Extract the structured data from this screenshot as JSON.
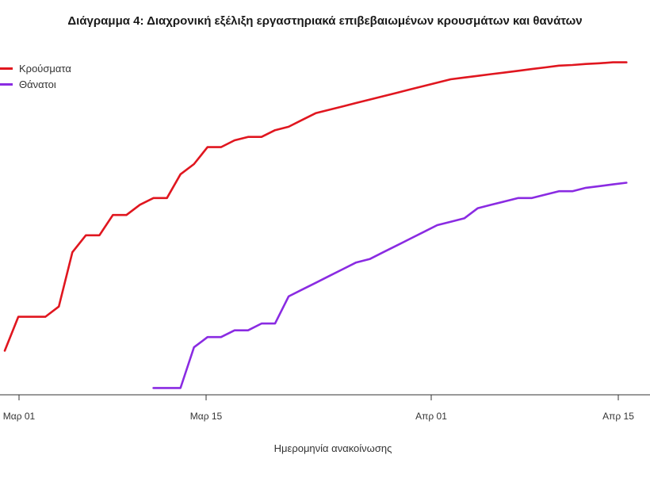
{
  "chart_data": {
    "type": "line",
    "title": "Διάγραμμα 4: Διαχρονική εξέλιξη εργαστηριακά επιβεβαιωμένων κρουσμάτων και θανάτων",
    "xlabel": "Ημερομηνία ανακοίνωσης",
    "ylabel": "",
    "x_ticks": [
      "Μαρ 01",
      "Μαρ 15",
      "Απρ 01",
      "Απρ 15"
    ],
    "legend_position": "top-left",
    "grid": false,
    "series": [
      {
        "name": "Κρούσματα",
        "color": "#e0161f",
        "points": [
          [
            0.0,
            0.13
          ],
          [
            1.0,
            0.23
          ],
          [
            2.0,
            0.23
          ],
          [
            3.0,
            0.23
          ],
          [
            4.0,
            0.26
          ],
          [
            5.0,
            0.42
          ],
          [
            6.0,
            0.47
          ],
          [
            7.0,
            0.47
          ],
          [
            8.0,
            0.53
          ],
          [
            9.0,
            0.53
          ],
          [
            10.0,
            0.56
          ],
          [
            11.0,
            0.58
          ],
          [
            12.0,
            0.58
          ],
          [
            13.0,
            0.65
          ],
          [
            14.0,
            0.68
          ],
          [
            15.0,
            0.73
          ],
          [
            16.0,
            0.73
          ],
          [
            17.0,
            0.75
          ],
          [
            18.0,
            0.76
          ],
          [
            19.0,
            0.76
          ],
          [
            20.0,
            0.78
          ],
          [
            21.0,
            0.79
          ],
          [
            22.0,
            0.81
          ],
          [
            23.0,
            0.83
          ],
          [
            24.0,
            0.84
          ],
          [
            25.0,
            0.85
          ],
          [
            26.0,
            0.86
          ],
          [
            27.0,
            0.87
          ],
          [
            28.0,
            0.88
          ],
          [
            29.0,
            0.89
          ],
          [
            30.0,
            0.9
          ],
          [
            31.0,
            0.91
          ],
          [
            32.0,
            0.92
          ],
          [
            33.0,
            0.93
          ],
          [
            34.0,
            0.935
          ],
          [
            35.0,
            0.94
          ],
          [
            36.0,
            0.945
          ],
          [
            37.0,
            0.95
          ],
          [
            38.0,
            0.955
          ],
          [
            39.0,
            0.96
          ],
          [
            40.0,
            0.965
          ],
          [
            41.0,
            0.97
          ],
          [
            42.0,
            0.972
          ],
          [
            43.0,
            0.975
          ],
          [
            44.0,
            0.977
          ],
          [
            45.0,
            0.98
          ],
          [
            46.0,
            0.98
          ]
        ]
      },
      {
        "name": "Θάνατοι",
        "color": "#8a2be2",
        "points": [
          [
            11.0,
            0.02
          ],
          [
            12.0,
            0.02
          ],
          [
            13.0,
            0.02
          ],
          [
            14.0,
            0.14
          ],
          [
            15.0,
            0.17
          ],
          [
            16.0,
            0.17
          ],
          [
            17.0,
            0.19
          ],
          [
            18.0,
            0.19
          ],
          [
            19.0,
            0.21
          ],
          [
            20.0,
            0.21
          ],
          [
            21.0,
            0.29
          ],
          [
            22.0,
            0.31
          ],
          [
            23.0,
            0.33
          ],
          [
            24.0,
            0.35
          ],
          [
            25.0,
            0.37
          ],
          [
            26.0,
            0.39
          ],
          [
            27.0,
            0.4
          ],
          [
            28.0,
            0.42
          ],
          [
            29.0,
            0.44
          ],
          [
            30.0,
            0.46
          ],
          [
            31.0,
            0.48
          ],
          [
            32.0,
            0.5
          ],
          [
            33.0,
            0.51
          ],
          [
            34.0,
            0.52
          ],
          [
            35.0,
            0.55
          ],
          [
            36.0,
            0.56
          ],
          [
            37.0,
            0.57
          ],
          [
            38.0,
            0.58
          ],
          [
            39.0,
            0.58
          ],
          [
            40.0,
            0.59
          ],
          [
            41.0,
            0.6
          ],
          [
            42.0,
            0.6
          ],
          [
            43.0,
            0.61
          ],
          [
            44.0,
            0.615
          ],
          [
            45.0,
            0.62
          ],
          [
            46.0,
            0.625
          ]
        ]
      }
    ]
  }
}
